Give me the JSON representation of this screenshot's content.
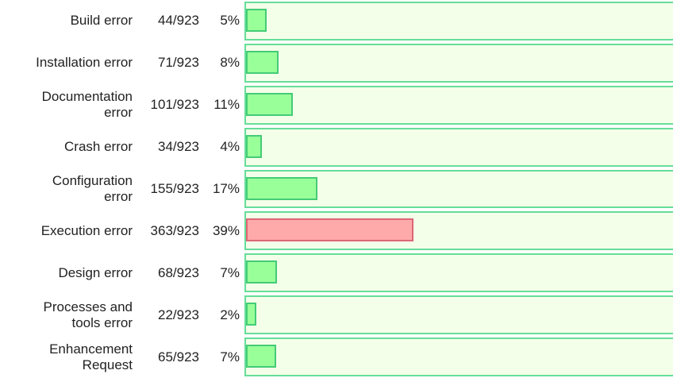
{
  "chart_data": {
    "type": "bar",
    "orientation": "horizontal",
    "categories": [
      "Build error",
      "Installation error",
      "Documentation error",
      "Crash error",
      "Configuration error",
      "Execution error",
      "Design error",
      "Processes and tools error",
      "Enhancement Request"
    ],
    "values": [
      44,
      71,
      101,
      34,
      155,
      363,
      68,
      22,
      65
    ],
    "value_labels": [
      "44/923",
      "71/923",
      "101/923",
      "34/923",
      "155/923",
      "363/923",
      "68/923",
      "22/923",
      "65/923"
    ],
    "percent_labels": [
      "5%",
      "8%",
      "11%",
      "4%",
      "17%",
      "39%",
      "7%",
      "2%",
      "7%"
    ],
    "xlim": [
      0,
      923
    ],
    "colors": [
      "#99ff99",
      "#99ff99",
      "#99ff99",
      "#99ff99",
      "#99ff99",
      "#ffaaaa",
      "#99ff99",
      "#99ff99",
      "#99ff99"
    ]
  }
}
